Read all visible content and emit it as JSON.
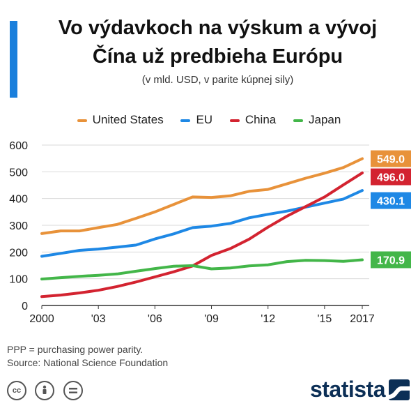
{
  "header": {
    "title_line1": "Vo výdavkoch na výskum a vývoj",
    "title_line2": "Čína už predbieha Európu",
    "subtitle": "(v mld. USD, v parite kúpnej sily)"
  },
  "colors": {
    "accent": "#1a7fdc",
    "united_states": "#e8923a",
    "eu": "#1e88e5",
    "china": "#d32330",
    "japan": "#43b649",
    "brand": "#0c2f56"
  },
  "chart_data": {
    "type": "line",
    "x": [
      2000,
      2001,
      2002,
      2003,
      2004,
      2005,
      2006,
      2007,
      2008,
      2009,
      2010,
      2011,
      2012,
      2013,
      2014,
      2015,
      2016,
      2017
    ],
    "x_tick_values": [
      2000,
      2003,
      2006,
      2009,
      2012,
      2015,
      2017
    ],
    "x_tick_labels": [
      "2000",
      "'03",
      "'06",
      "'09",
      "'12",
      "'15",
      "2017"
    ],
    "y_tick_values": [
      0,
      100,
      200,
      300,
      400,
      500,
      600
    ],
    "y_tick_labels": [
      "0",
      "100",
      "200",
      "300",
      "400",
      "500",
      "600"
    ],
    "ylim": [
      0,
      600
    ],
    "xlim": [
      2000,
      2017
    ],
    "grid": "horizontal",
    "legend_position": "top",
    "series": [
      {
        "name": "United States",
        "color": "#e8923a",
        "end_label": "549.0",
        "values": [
          269,
          279,
          279,
          291,
          303,
          326,
          350,
          378,
          406,
          404,
          410,
          427,
          434,
          455,
          476,
          495,
          516,
          549
        ]
      },
      {
        "name": "EU",
        "color": "#1e88e5",
        "end_label": "430.1",
        "values": [
          184,
          195,
          206,
          211,
          218,
          226,
          249,
          268,
          291,
          297,
          307,
          328,
          341,
          353,
          368,
          383,
          398,
          430.1
        ]
      },
      {
        "name": "China",
        "color": "#d32330",
        "end_label": "496.0",
        "values": [
          33,
          39,
          47,
          57,
          71,
          88,
          107,
          126,
          148,
          187,
          213,
          248,
          293,
          334,
          370,
          406,
          451,
          496
        ]
      },
      {
        "name": "Japan",
        "color": "#43b649",
        "end_label": "170.9",
        "values": [
          99,
          104,
          109,
          113,
          118,
          128,
          138,
          147,
          149,
          137,
          140,
          148,
          152,
          164,
          169,
          168,
          165,
          170.9
        ]
      }
    ]
  },
  "footer": {
    "note": "PPP = purchasing power parity.",
    "source": "Source: National Science Foundation",
    "cc_icons": [
      "cc-icon",
      "attribution-icon",
      "no-derivatives-icon"
    ],
    "brand": "statista"
  }
}
